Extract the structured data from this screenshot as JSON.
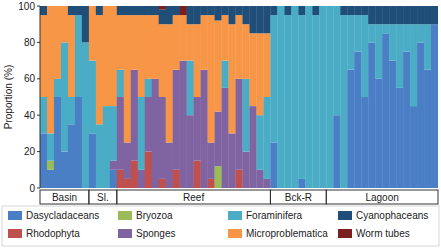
{
  "chart_data": {
    "type": "bar",
    "stacked": true,
    "y_label": "Proportion (%)",
    "ylim": [
      0,
      100
    ],
    "yticks": [
      0,
      20,
      40,
      60,
      80,
      100
    ],
    "grid": false,
    "categories": [
      null,
      null,
      null,
      null,
      null,
      null,
      null,
      null,
      null,
      null,
      null,
      null,
      null,
      null,
      null,
      null,
      null,
      null,
      null,
      null,
      null,
      null,
      null,
      null,
      null,
      null,
      null,
      null,
      null,
      null,
      null,
      null,
      null,
      null,
      null,
      null,
      null,
      null,
      null,
      null,
      null,
      null,
      null,
      null,
      null,
      null,
      null,
      null,
      null,
      null,
      null,
      null,
      null,
      null,
      null,
      null,
      null
    ],
    "groups": [
      {
        "label": "Basin",
        "count": 7
      },
      {
        "label": "Sl.",
        "count": 4
      },
      {
        "label": "Reef",
        "count": 22
      },
      {
        "label": "Bck-R",
        "count": 8
      },
      {
        "label": "Lagoon",
        "count": 16
      }
    ],
    "series": [
      {
        "name": "Dasycladaceans",
        "color": "#4a7fc6",
        "values": [
          30,
          10,
          50,
          20,
          35,
          50,
          0,
          30,
          0,
          0,
          10,
          0,
          0,
          0,
          0,
          0,
          0,
          0,
          0,
          0,
          0,
          0,
          0,
          0,
          0,
          0,
          0,
          0,
          0,
          0,
          0,
          0,
          0,
          25,
          0,
          0,
          0,
          5,
          0,
          0,
          0,
          0,
          40,
          0,
          65,
          75,
          50,
          80,
          60,
          85,
          70,
          55,
          75,
          45,
          80,
          65,
          90
        ]
      },
      {
        "name": "Rhodophyta",
        "color": "#c0504d",
        "values": [
          0,
          0,
          0,
          0,
          0,
          0,
          0,
          0,
          0,
          0,
          0,
          10,
          5,
          15,
          0,
          20,
          0,
          5,
          0,
          10,
          0,
          0,
          15,
          0,
          5,
          0,
          0,
          0,
          10,
          0,
          0,
          0,
          0,
          0,
          0,
          0,
          0,
          0,
          0,
          0,
          0,
          0,
          0,
          0,
          0,
          0,
          0,
          0,
          0,
          0,
          0,
          0,
          0,
          0,
          0,
          0,
          0
        ]
      },
      {
        "name": "Bryozoa",
        "color": "#9bbb59",
        "values": [
          0,
          5,
          0,
          0,
          0,
          0,
          0,
          0,
          0,
          0,
          0,
          0,
          0,
          0,
          0,
          0,
          0,
          0,
          0,
          0,
          0,
          0,
          0,
          0,
          0,
          12,
          0,
          0,
          0,
          0,
          0,
          0,
          0,
          0,
          0,
          0,
          0,
          0,
          0,
          0,
          0,
          0,
          0,
          0,
          0,
          0,
          0,
          0,
          0,
          0,
          0,
          0,
          0,
          0,
          0,
          0,
          0
        ]
      },
      {
        "name": "Sponges",
        "color": "#8064a2",
        "values": [
          0,
          0,
          0,
          0,
          0,
          0,
          0,
          0,
          0,
          0,
          5,
          40,
          20,
          50,
          10,
          30,
          60,
          45,
          25,
          55,
          70,
          40,
          35,
          65,
          20,
          30,
          55,
          30,
          50,
          20,
          45,
          10,
          5,
          0,
          0,
          0,
          0,
          0,
          0,
          0,
          0,
          0,
          0,
          0,
          0,
          0,
          0,
          0,
          0,
          0,
          0,
          0,
          0,
          0,
          0,
          0,
          0
        ]
      },
      {
        "name": "Foraminifera",
        "color": "#4bacc6",
        "values": [
          20,
          15,
          10,
          60,
          15,
          45,
          80,
          40,
          35,
          45,
          30,
          15,
          0,
          0,
          40,
          10,
          0,
          0,
          0,
          0,
          0,
          30,
          0,
          0,
          0,
          0,
          15,
          0,
          0,
          40,
          0,
          30,
          45,
          70,
          100,
          95,
          100,
          90,
          100,
          95,
          100,
          100,
          60,
          95,
          30,
          20,
          45,
          10,
          30,
          5,
          20,
          35,
          15,
          45,
          10,
          25,
          0
        ]
      },
      {
        "name": "Microproblematica",
        "color": "#f79646",
        "values": [
          45,
          70,
          40,
          20,
          45,
          0,
          0,
          30,
          60,
          55,
          55,
          30,
          70,
          30,
          45,
          35,
          35,
          40,
          65,
          30,
          25,
          20,
          40,
          30,
          70,
          50,
          25,
          60,
          35,
          30,
          40,
          45,
          35,
          0,
          0,
          0,
          0,
          0,
          0,
          0,
          0,
          0,
          0,
          0,
          0,
          0,
          0,
          0,
          0,
          0,
          0,
          0,
          0,
          0,
          0,
          0,
          0
        ]
      },
      {
        "name": "Cyanophaceans",
        "color": "#1f4e79",
        "values": [
          5,
          0,
          0,
          0,
          5,
          5,
          20,
          0,
          5,
          0,
          0,
          5,
          5,
          5,
          5,
          5,
          5,
          8,
          10,
          5,
          0,
          10,
          10,
          5,
          5,
          8,
          5,
          10,
          5,
          10,
          15,
          15,
          15,
          5,
          0,
          5,
          0,
          5,
          0,
          5,
          0,
          0,
          0,
          5,
          5,
          5,
          5,
          10,
          10,
          10,
          10,
          10,
          10,
          10,
          10,
          10,
          10
        ]
      },
      {
        "name": "Worm tubes",
        "color": "#7b1e1e",
        "values": [
          0,
          0,
          0,
          0,
          0,
          0,
          0,
          0,
          0,
          0,
          0,
          0,
          0,
          0,
          0,
          0,
          0,
          2,
          0,
          0,
          5,
          0,
          0,
          0,
          0,
          0,
          0,
          0,
          0,
          0,
          0,
          0,
          0,
          0,
          0,
          0,
          0,
          0,
          0,
          0,
          0,
          0,
          0,
          0,
          0,
          0,
          0,
          0,
          0,
          0,
          0,
          0,
          0,
          0,
          0,
          0,
          0
        ]
      }
    ]
  }
}
